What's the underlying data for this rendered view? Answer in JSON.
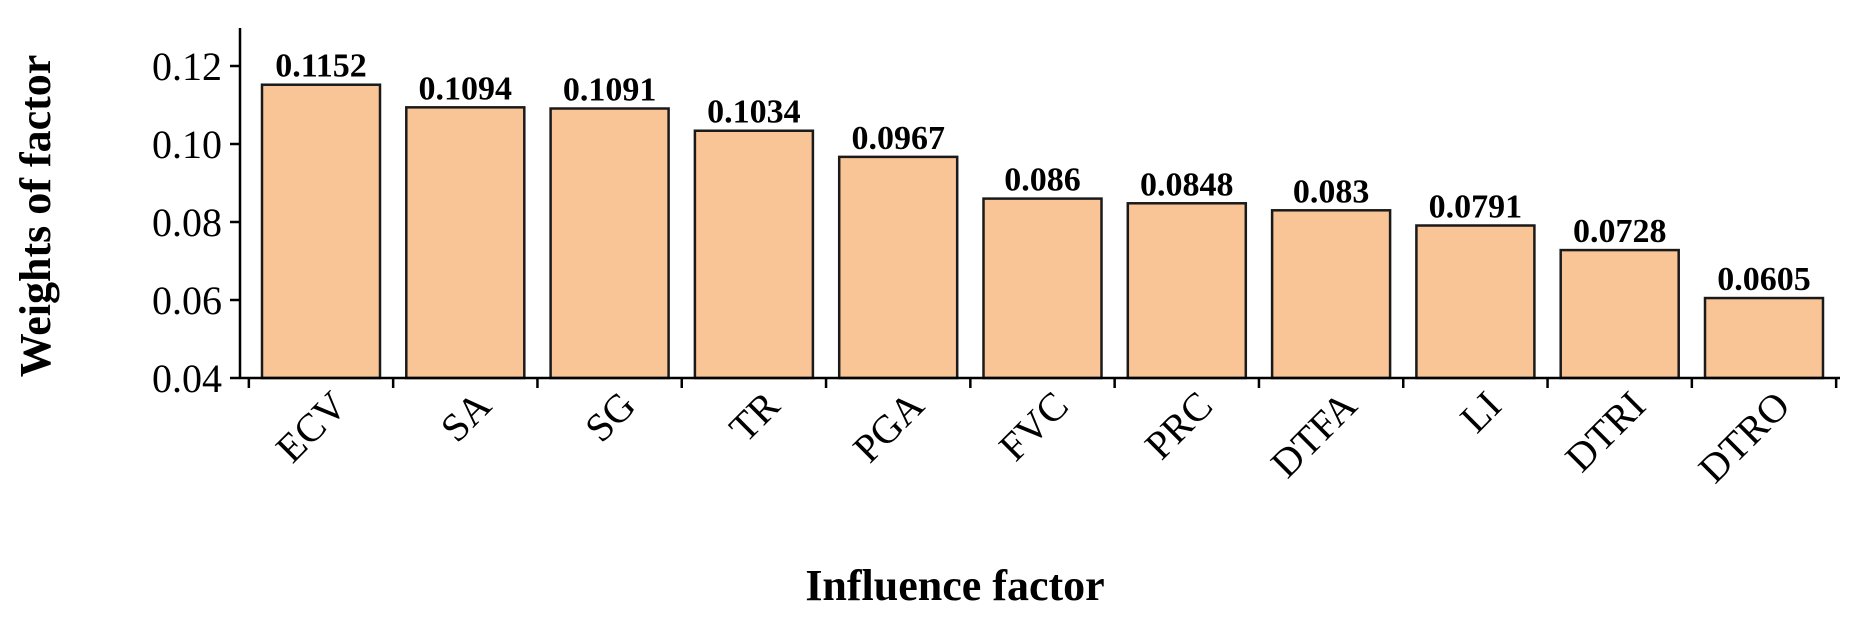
{
  "chart_data": {
    "type": "bar",
    "xlabel": "Influence factor",
    "ylabel": "Weights of factor",
    "categories": [
      "ECV",
      "SA",
      "SG",
      "TR",
      "PGA",
      "FVC",
      "PRC",
      "DTFA",
      "LI",
      "DTRI",
      "DTRO"
    ],
    "values": [
      0.1152,
      0.1094,
      0.1091,
      0.1034,
      0.0967,
      0.086,
      0.0848,
      0.083,
      0.0791,
      0.0728,
      0.0605
    ],
    "value_labels": [
      "0.1152",
      "0.1094",
      "0.1091",
      "0.1034",
      "0.0967",
      "0.086",
      "0.0848",
      "0.083",
      "0.0791",
      "0.0728",
      "0.0605"
    ],
    "ylim": [
      0.04,
      0.13
    ],
    "yticks": [
      0.04,
      0.06,
      0.08,
      0.1,
      0.12
    ],
    "ytick_labels": [
      "0.04",
      "0.06",
      "0.08",
      "0.10",
      "0.12"
    ],
    "grid": false,
    "legend": "none",
    "colors": {
      "bar_fill": "#f9c496",
      "bar_edge": "#1a1a1a"
    }
  }
}
